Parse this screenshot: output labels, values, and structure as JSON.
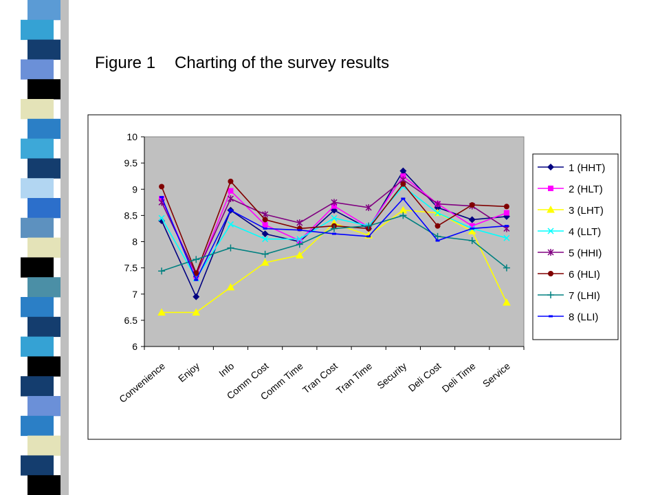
{
  "figure": {
    "number": "Figure 1",
    "caption": "Charting of the survey results"
  },
  "decoration": {
    "stripe_colors": [
      "#5b9bd5",
      "#35a2d4",
      "#143d6e",
      "#6b90d8",
      "#000000",
      "#e4e3b8",
      "#2b7fc6",
      "#3da8d8",
      "#143d6e",
      "#b2d6f2",
      "#2c6fcb",
      "#5d91bf",
      "#e4e3b8",
      "#000000",
      "#4b8fa6",
      "#2b7fc6",
      "#143d6e",
      "#35a2d4",
      "#000000",
      "#143d6e",
      "#6b90d8",
      "#2b7fc6",
      "#e4e3b8",
      "#143d6e",
      "#000000"
    ]
  },
  "chart_data": {
    "type": "line",
    "title": "",
    "xlabel": "",
    "ylabel": "",
    "categories": [
      "Convenience",
      "Enjoy",
      "Info",
      "Comm Cost",
      "Comm Time",
      "Tran Cost",
      "Tran Time",
      "Security",
      "Deli Cost",
      "Deli Time",
      "Service"
    ],
    "ylim": [
      6,
      10
    ],
    "yticks": [
      "6",
      "6.5",
      "7",
      "7.5",
      "8",
      "8.5",
      "9",
      "9.5",
      "10"
    ],
    "grid": false,
    "plot_background": "#c0c0c0",
    "legend_position": "right",
    "series": [
      {
        "name": "1 (HHT)",
        "color": "#000080",
        "marker": "diamond",
        "values": [
          8.4,
          6.95,
          8.6,
          8.15,
          8.0,
          8.6,
          8.25,
          9.35,
          8.65,
          8.42,
          8.48
        ]
      },
      {
        "name": "2 (HLT)",
        "color": "#ff00ff",
        "marker": "square",
        "values": [
          8.82,
          7.35,
          8.97,
          8.32,
          8.02,
          8.68,
          8.28,
          9.25,
          8.72,
          8.3,
          8.55
        ]
      },
      {
        "name": "3 (LHT)",
        "color": "#ffff00",
        "marker": "triangle",
        "values": [
          6.65,
          6.65,
          7.13,
          7.6,
          7.74,
          8.35,
          8.12,
          8.6,
          8.55,
          8.2,
          6.84
        ]
      },
      {
        "name": "4 (LLT)",
        "color": "#00ffff",
        "marker": "x",
        "values": [
          8.45,
          7.3,
          8.33,
          8.05,
          8.05,
          8.45,
          8.3,
          9.05,
          8.55,
          8.25,
          8.07
        ]
      },
      {
        "name": "5 (HHI)",
        "color": "#800080",
        "marker": "asterisk",
        "values": [
          8.75,
          7.38,
          8.82,
          8.52,
          8.36,
          8.75,
          8.65,
          9.18,
          8.72,
          8.68,
          8.25
        ]
      },
      {
        "name": "6 (HLI)",
        "color": "#800000",
        "marker": "circle",
        "values": [
          9.05,
          7.4,
          9.15,
          8.42,
          8.25,
          8.3,
          8.25,
          9.1,
          8.3,
          8.7,
          8.67
        ]
      },
      {
        "name": "7 (LHI)",
        "color": "#008080",
        "marker": "plus",
        "values": [
          7.44,
          7.66,
          7.88,
          7.76,
          7.95,
          8.25,
          8.3,
          8.5,
          8.1,
          8.02,
          7.5
        ]
      },
      {
        "name": "8 (LLI)",
        "color": "#0000ff",
        "marker": "dash",
        "values": [
          8.85,
          7.27,
          8.6,
          8.25,
          8.22,
          8.15,
          8.1,
          8.82,
          8.02,
          8.25,
          8.3
        ]
      }
    ]
  }
}
